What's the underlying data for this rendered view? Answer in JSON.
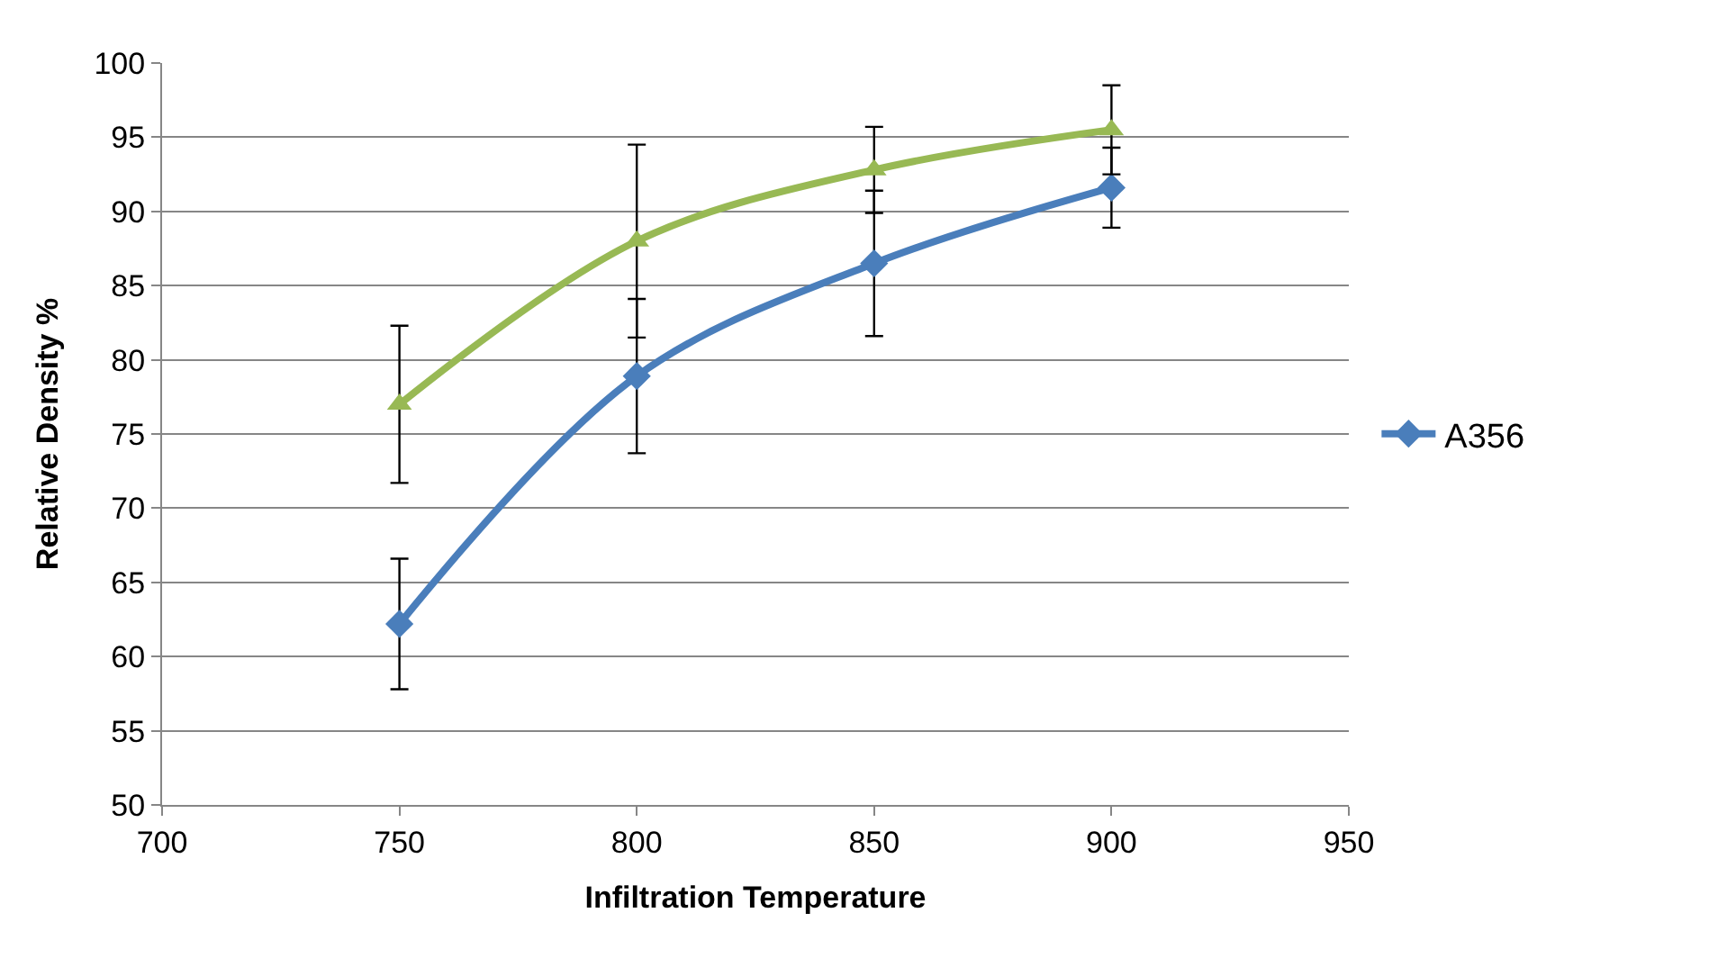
{
  "chart_data": {
    "type": "line",
    "xlabel": "Infiltration Temperature",
    "ylabel": "Relative Density %",
    "x": [
      750,
      800,
      850,
      900
    ],
    "series": [
      {
        "name": "A356",
        "color": "#4a7ebb",
        "marker": "diamond",
        "values": [
          62.2,
          78.9,
          86.5,
          91.6
        ],
        "errors": [
          4.4,
          5.2,
          4.9,
          2.7
        ]
      },
      {
        "color": "#98b954",
        "marker": "triangle",
        "values": [
          77.0,
          88.0,
          92.8,
          95.5
        ],
        "errors": [
          5.3,
          6.5,
          2.9,
          3.0
        ]
      }
    ],
    "xlim": [
      700,
      950
    ],
    "xticks": [
      700,
      750,
      800,
      850,
      900,
      950
    ],
    "ylim": [
      50,
      100
    ],
    "yticks": [
      50,
      55,
      60,
      65,
      70,
      75,
      80,
      85,
      90,
      95,
      100
    ],
    "grid": "y",
    "legend": "right"
  }
}
